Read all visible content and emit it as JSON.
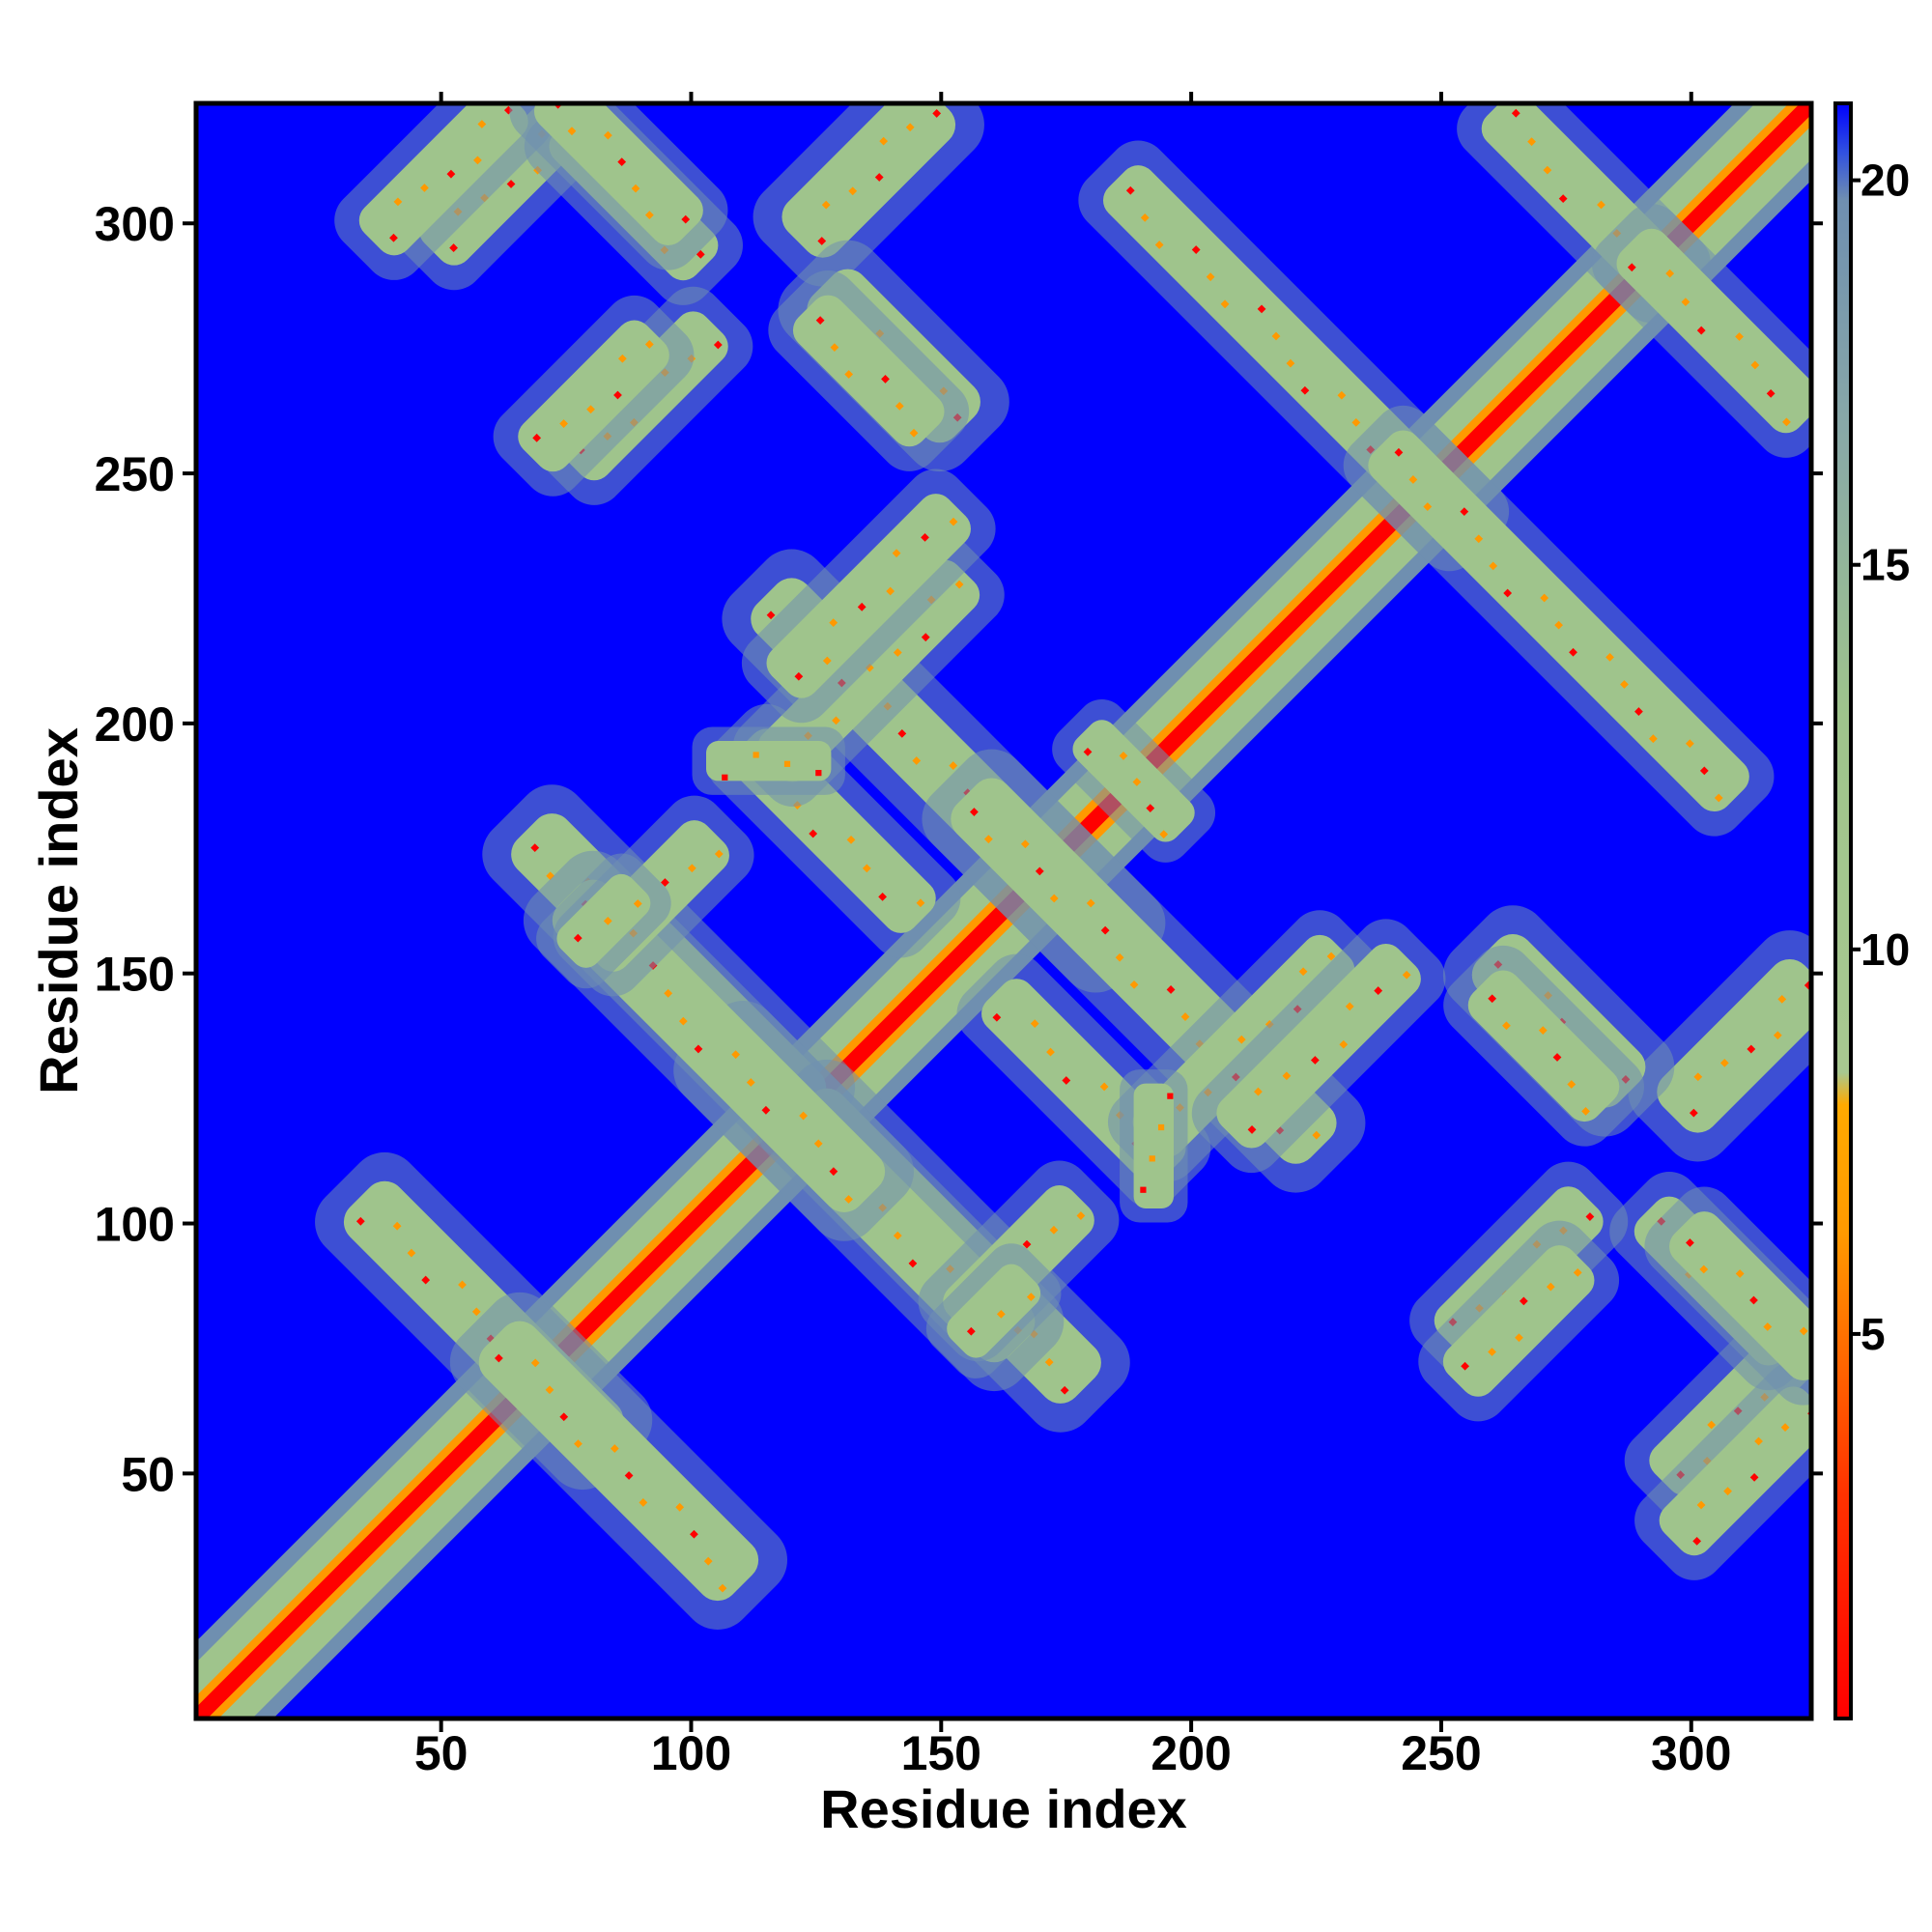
{
  "chart_data": {
    "type": "heatmap",
    "title": "",
    "xlabel": "Residue index",
    "ylabel": "Residue index",
    "xlim": [
      1,
      323
    ],
    "ylim": [
      1,
      323
    ],
    "xticks": [
      "50",
      "100",
      "150",
      "200",
      "250",
      "300"
    ],
    "yticks": [
      "50",
      "100",
      "150",
      "200",
      "250",
      "300"
    ],
    "colorbar": {
      "range": [
        0,
        21
      ],
      "ticks": [
        "5",
        "10",
        "15",
        "20"
      ],
      "colors": {
        "low": "#ff0000",
        "mid_low": "#ff9900",
        "mid": "#9fc48c",
        "high": "#6f8fb0",
        "background": "#0000ff"
      }
    },
    "description_of_values": "Contact map: red/orange diagonal band (distance < 8), green-grey off-diagonal bands (beta-sheet contacts), blue elsewhere (> 20)"
  }
}
